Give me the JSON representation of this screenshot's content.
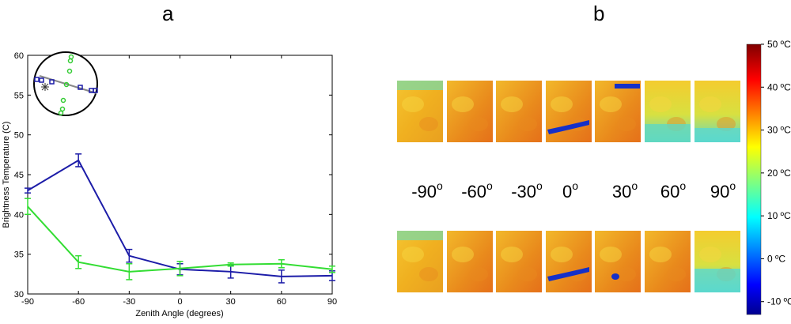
{
  "panel_labels": {
    "a": "a",
    "b": "b"
  },
  "chart_data": [
    {
      "type": "line",
      "panel": "a",
      "xlabel": "Zenith Angle (degrees)",
      "ylabel": "Brightness Temperature (C)",
      "xlim": [
        -90,
        90
      ],
      "ylim": [
        30,
        60
      ],
      "xticks": [
        -90,
        -60,
        -30,
        0,
        30,
        60,
        90
      ],
      "yticks": [
        30,
        35,
        40,
        45,
        50,
        55,
        60
      ],
      "x": [
        -90,
        -60,
        -30,
        0,
        30,
        60,
        90
      ],
      "series": [
        {
          "color": "#1c1ca8",
          "values": [
            43.0,
            46.8,
            34.8,
            33.1,
            32.8,
            32.2,
            32.3
          ],
          "errors": [
            0.3,
            0.8,
            0.8,
            0.7,
            0.8,
            0.8,
            0.6
          ]
        },
        {
          "color": "#33dd33",
          "values": [
            41.0,
            34.0,
            32.8,
            33.2,
            33.7,
            33.8,
            33.1
          ],
          "errors": [
            1.0,
            0.8,
            1.0,
            0.9,
            0.2,
            0.5,
            0.4
          ]
        }
      ],
      "grid": false,
      "inset": {
        "description": "circular sampling layout",
        "blue_marker": "square",
        "green_marker": "circle",
        "center_marker": "asterisk"
      }
    },
    {
      "type": "heatmap",
      "panel": "b",
      "angle_labels": [
        "-90",
        "-60",
        "-30",
        "0",
        "30",
        "60",
        "90"
      ],
      "angle_suffix": "o",
      "colorbar": {
        "min": -13,
        "max": 50,
        "ticks": [
          {
            "value": 50,
            "label": "50 ºC"
          },
          {
            "value": 40,
            "label": "40 ºC"
          },
          {
            "value": 30,
            "label": "30 ºC"
          },
          {
            "value": 20,
            "label": "20 ºC"
          },
          {
            "value": 10,
            "label": "10 ºC"
          },
          {
            "value": 0,
            "label": "0 ºC"
          },
          {
            "value": -10,
            "label": "-10 ºC"
          }
        ],
        "colormap": "jet"
      }
    }
  ]
}
